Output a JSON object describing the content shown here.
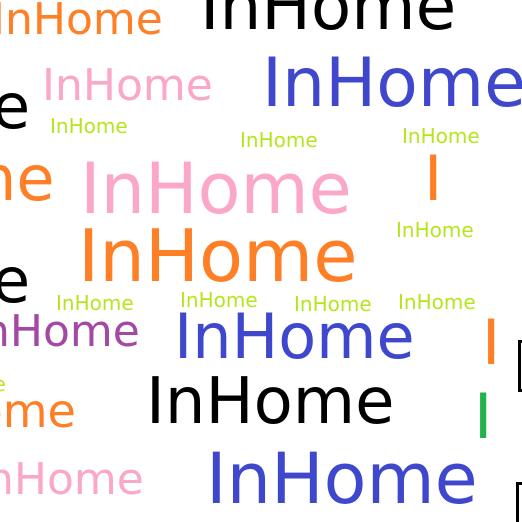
{
  "words": [
    {
      "text": "InHome",
      "color": "#ff7f27"
    },
    {
      "text": "InHome",
      "color": "#000000"
    },
    {
      "text": "e",
      "color": "#000000"
    },
    {
      "text": "InHome",
      "color": "#fba8c8"
    },
    {
      "text": "InHome",
      "color": "#3f48cc"
    },
    {
      "text": "InHome",
      "color": "#b5e61d"
    },
    {
      "text": "InHome",
      "color": "#b5e61d"
    },
    {
      "text": "InHome",
      "color": "#b5e61d"
    },
    {
      "text": "me",
      "color": "#ff7f27"
    },
    {
      "text": "InHome",
      "color": "#fba8c8"
    },
    {
      "text": "I",
      "color": "#ff7f27"
    },
    {
      "text": "InHome",
      "color": "#b5e61d"
    },
    {
      "text": "InHome",
      "color": "#ff7f27"
    },
    {
      "text": "e",
      "color": "#000000"
    },
    {
      "text": "InHome",
      "color": "#b5e61d"
    },
    {
      "text": "InHome",
      "color": "#b5e61d"
    },
    {
      "text": "InHome",
      "color": "#b5e61d"
    },
    {
      "text": "InHome",
      "color": "#b5e61d"
    },
    {
      "text": "nHome",
      "color": "#a349a4"
    },
    {
      "text": "InHome",
      "color": "#3f48cc"
    },
    {
      "text": "I",
      "color": "#ff7f27"
    },
    {
      "text": "me",
      "color": "#b5e61d"
    },
    {
      "text": "Home",
      "color": "#ff7f27"
    },
    {
      "text": "InHome",
      "color": "#000000"
    },
    {
      "text": "I",
      "color": "#22b14c"
    },
    {
      "text": "nHome",
      "color": "#fba8c8"
    },
    {
      "text": "InHome",
      "color": "#3f48cc"
    }
  ]
}
